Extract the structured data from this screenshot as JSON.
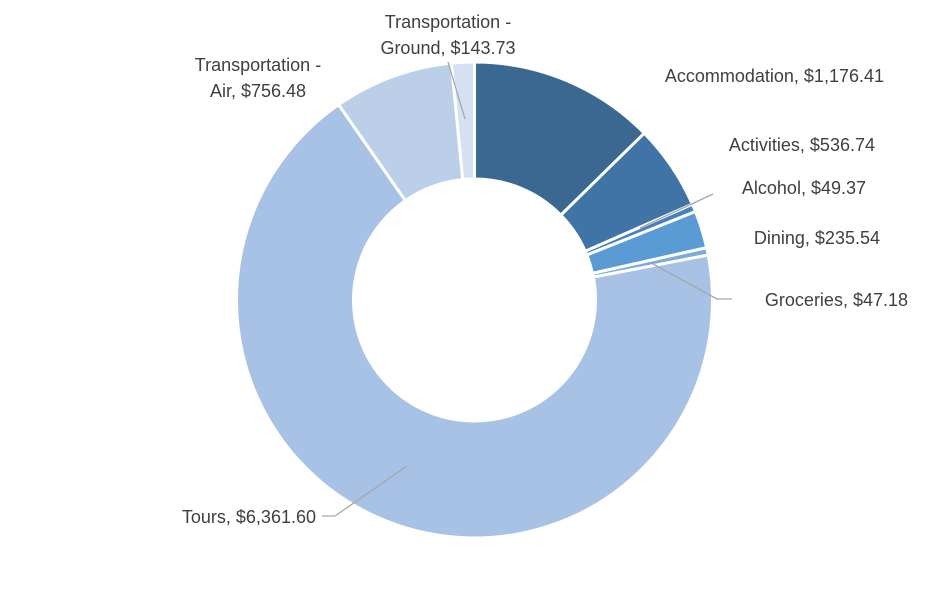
{
  "chart_data": {
    "type": "pie",
    "donut": true,
    "title": "",
    "slices": [
      {
        "name": "Accommodation",
        "value": 1176.41,
        "display": "$1,176.41",
        "color": "#3a6891"
      },
      {
        "name": "Activities",
        "value": 536.74,
        "display": "$536.74",
        "color": "#4074a6"
      },
      {
        "name": "Alcohol",
        "value": 49.37,
        "display": "$49.37",
        "color": "#4780ba"
      },
      {
        "name": "Dining",
        "value": 235.54,
        "display": "$235.54",
        "color": "#5b9bd5"
      },
      {
        "name": "Groceries",
        "value": 47.18,
        "display": "$47.18",
        "color": "#7caadc"
      },
      {
        "name": "Tours",
        "value": 6361.6,
        "display": "$6,361.60",
        "color": "#a8c2e5"
      },
      {
        "name": "Transportation - Air",
        "value": 756.48,
        "display": "$756.48",
        "color": "#bccfe9"
      },
      {
        "name": "Transportation - Ground",
        "value": 143.73,
        "display": "$143.73",
        "color": "#d5e1f2"
      }
    ]
  }
}
